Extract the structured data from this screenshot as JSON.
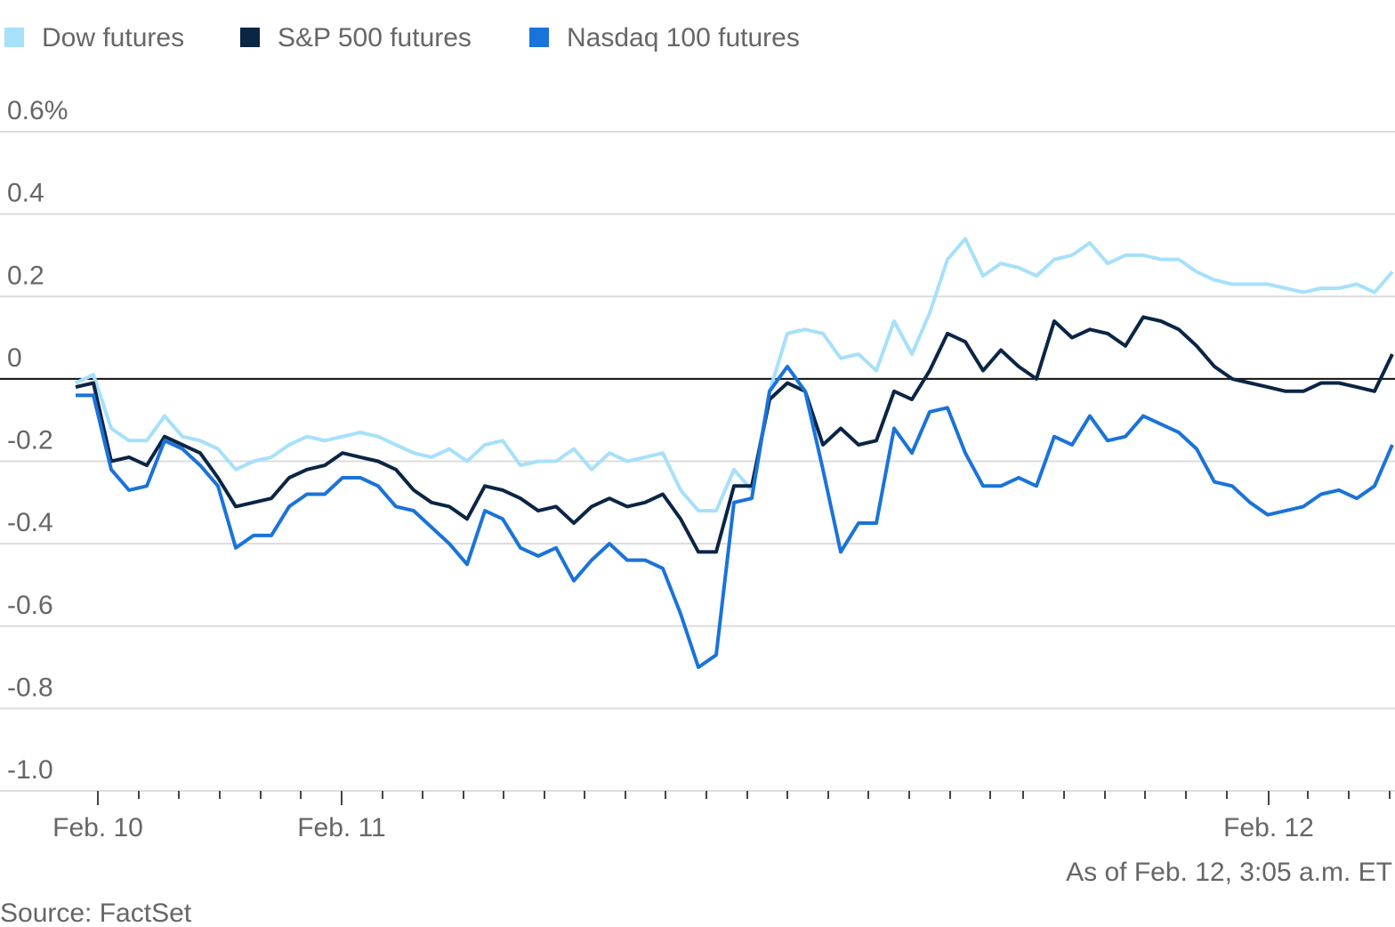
{
  "chart_data": {
    "type": "line",
    "legend_position": "top-left",
    "grid": true,
    "zero_line": true,
    "xlim": [
      0,
      1568
    ],
    "ylim": [
      -1.0,
      0.6
    ],
    "yticks": [
      {
        "value": 0.6,
        "label": "0.6%"
      },
      0.4,
      0.2,
      0,
      -0.2,
      -0.4,
      -0.6,
      -0.8,
      {
        "value": -1.0,
        "label": "-1.0"
      }
    ],
    "xticks": [
      {
        "value": 110,
        "label": "Feb. 10"
      },
      {
        "value": 384,
        "label": "Feb. 11"
      },
      {
        "value": 1426,
        "label": "Feb. 12"
      }
    ],
    "minor_xticks": [
      156,
      201,
      247,
      293,
      338,
      430,
      475,
      521,
      566,
      612,
      657,
      703,
      748,
      794,
      840,
      885,
      931,
      976,
      1022,
      1068,
      1113,
      1150,
      1196,
      1242,
      1287,
      1333,
      1379,
      1470,
      1516,
      1562
    ],
    "x": [
      85,
      105,
      125,
      145,
      165,
      185,
      205,
      225,
      245,
      265,
      285,
      305,
      325,
      345,
      365,
      385,
      405,
      425,
      445,
      465,
      485,
      505,
      525,
      545,
      565,
      585,
      605,
      625,
      645,
      665,
      685,
      705,
      725,
      745,
      765,
      785,
      805,
      825,
      845,
      865,
      885,
      905,
      925,
      945,
      965,
      985,
      1005,
      1025,
      1045,
      1065,
      1085,
      1105,
      1125,
      1145,
      1165,
      1185,
      1205,
      1225,
      1245,
      1265,
      1285,
      1305,
      1325,
      1345,
      1365,
      1385,
      1405,
      1425,
      1445,
      1465,
      1485,
      1505,
      1525,
      1545,
      1565
    ],
    "series": [
      {
        "name": "Dow futures",
        "color": "#a6e0fb",
        "values": [
          -0.01,
          0.01,
          -0.12,
          -0.15,
          -0.15,
          -0.09,
          -0.14,
          -0.15,
          -0.17,
          -0.22,
          -0.2,
          -0.19,
          -0.16,
          -0.14,
          -0.15,
          -0.14,
          -0.13,
          -0.14,
          -0.16,
          -0.18,
          -0.19,
          -0.17,
          -0.2,
          -0.16,
          -0.15,
          -0.21,
          -0.2,
          -0.2,
          -0.17,
          -0.22,
          -0.18,
          -0.2,
          -0.19,
          -0.18,
          -0.27,
          -0.32,
          -0.32,
          -0.22,
          -0.27,
          -0.03,
          0.11,
          0.12,
          0.11,
          0.05,
          0.06,
          0.02,
          0.14,
          0.06,
          0.16,
          0.29,
          0.34,
          0.25,
          0.28,
          0.27,
          0.25,
          0.29,
          0.3,
          0.33,
          0.28,
          0.3,
          0.3,
          0.29,
          0.29,
          0.26,
          0.24,
          0.23,
          0.23,
          0.23,
          0.22,
          0.21,
          0.22,
          0.22,
          0.23,
          0.21,
          0.26
        ]
      },
      {
        "name": "S&P 500 futures",
        "color": "#0b2545",
        "values": [
          -0.02,
          -0.01,
          -0.2,
          -0.19,
          -0.21,
          -0.14,
          -0.16,
          -0.18,
          -0.24,
          -0.31,
          -0.3,
          -0.29,
          -0.24,
          -0.22,
          -0.21,
          -0.18,
          -0.19,
          -0.2,
          -0.22,
          -0.27,
          -0.3,
          -0.31,
          -0.34,
          -0.26,
          -0.27,
          -0.29,
          -0.32,
          -0.31,
          -0.35,
          -0.31,
          -0.29,
          -0.31,
          -0.3,
          -0.28,
          -0.34,
          -0.42,
          -0.42,
          -0.26,
          -0.26,
          -0.05,
          -0.01,
          -0.03,
          -0.16,
          -0.12,
          -0.16,
          -0.15,
          -0.03,
          -0.05,
          0.02,
          0.11,
          0.09,
          0.02,
          0.07,
          0.03,
          0.0,
          0.14,
          0.1,
          0.12,
          0.11,
          0.08,
          0.15,
          0.14,
          0.12,
          0.08,
          0.03,
          0.0,
          -0.01,
          -0.02,
          -0.03,
          -0.03,
          -0.01,
          -0.01,
          -0.02,
          -0.03,
          0.06
        ]
      },
      {
        "name": "Nasdaq 100 futures",
        "color": "#1a73d9",
        "values": [
          -0.04,
          -0.04,
          -0.22,
          -0.27,
          -0.26,
          -0.15,
          -0.17,
          -0.21,
          -0.26,
          -0.41,
          -0.38,
          -0.38,
          -0.31,
          -0.28,
          -0.28,
          -0.24,
          -0.24,
          -0.26,
          -0.31,
          -0.32,
          -0.36,
          -0.4,
          -0.45,
          -0.32,
          -0.34,
          -0.41,
          -0.43,
          -0.41,
          -0.49,
          -0.44,
          -0.4,
          -0.44,
          -0.44,
          -0.46,
          -0.57,
          -0.7,
          -0.67,
          -0.3,
          -0.29,
          -0.03,
          0.03,
          -0.03,
          -0.22,
          -0.42,
          -0.35,
          -0.35,
          -0.12,
          -0.18,
          -0.08,
          -0.07,
          -0.18,
          -0.26,
          -0.26,
          -0.24,
          -0.26,
          -0.14,
          -0.16,
          -0.09,
          -0.15,
          -0.14,
          -0.09,
          -0.11,
          -0.13,
          -0.17,
          -0.25,
          -0.26,
          -0.3,
          -0.33,
          -0.32,
          -0.31,
          -0.28,
          -0.27,
          -0.29,
          -0.26,
          -0.16
        ]
      }
    ],
    "note": "As of Feb. 12, 3:05 a.m. ET",
    "source": "Source: FactSet"
  }
}
